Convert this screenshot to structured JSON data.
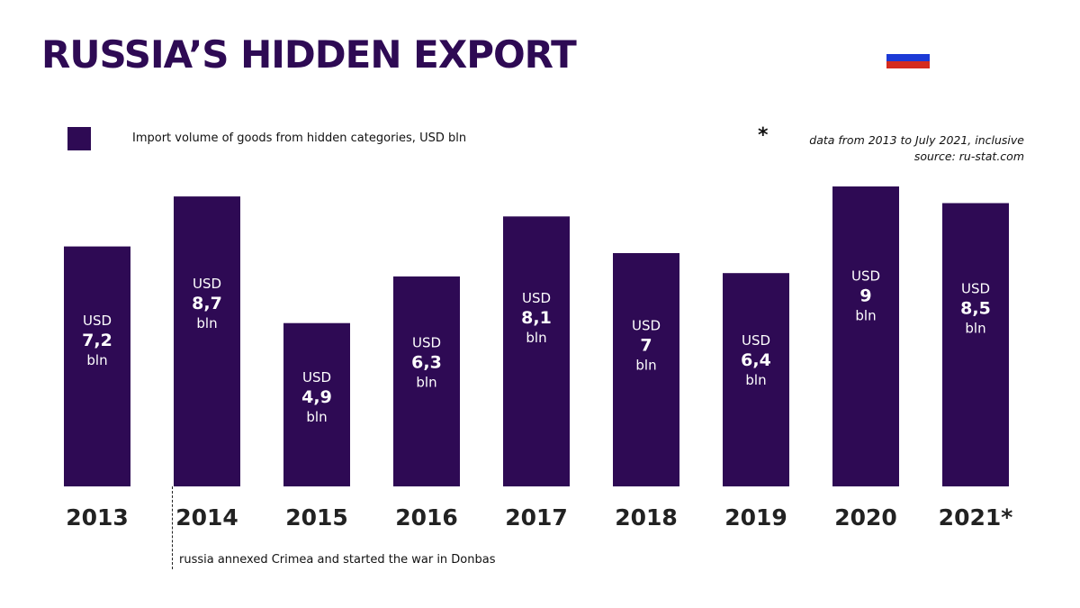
{
  "header": {
    "title": "RUSSIA’S HIDDEN EXPORT"
  },
  "flag": {
    "name": "russia-flag",
    "colors": [
      "#ffffff",
      "#1c3ad6",
      "#d52b1e"
    ]
  },
  "legend": {
    "label": "Import volume of goods from hidden categories, USD bln",
    "color": "#2e0a54"
  },
  "notes": {
    "asterisk": "*",
    "line1": "data from 2013 to July 2021, inclusive",
    "line2": "source: ru-stat.com"
  },
  "annotation": {
    "text": "russia annexed Crimea and started the war in Donbas",
    "category": "2014"
  },
  "chart_data": {
    "type": "bar",
    "categories": [
      "2013",
      "2014",
      "2015",
      "2016",
      "2017",
      "2018",
      "2019",
      "2020",
      "2021*"
    ],
    "values": [
      7.2,
      8.7,
      4.9,
      6.3,
      8.1,
      7,
      6.4,
      9,
      8.5
    ],
    "value_labels": [
      "7,2",
      "8,7",
      "4,9",
      "6,3",
      "8,1",
      "7",
      "6,4",
      "9",
      "8,5"
    ],
    "label_prefix": "USD",
    "label_suffix": "bln",
    "bar_color": "#2e0a54",
    "ylim": [
      0,
      9
    ],
    "grid": false,
    "legend_position": "top-left"
  }
}
